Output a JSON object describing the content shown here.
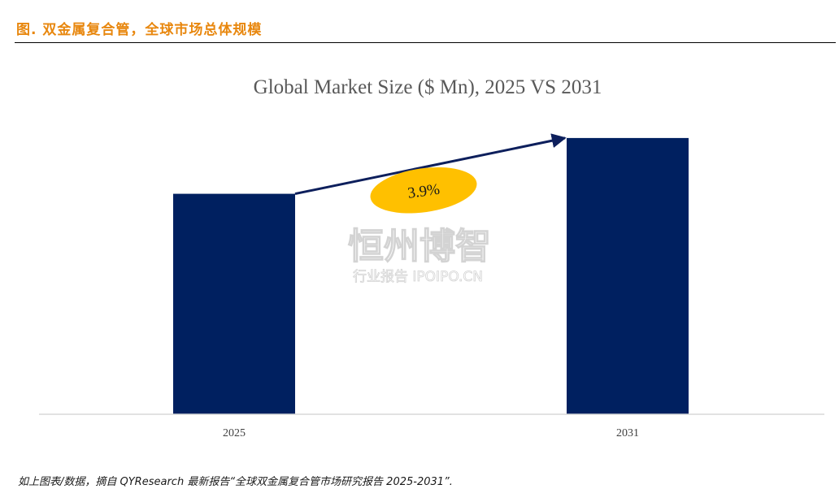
{
  "header": {
    "label": "图.  双金属复合管，全球市场总体规模",
    "color": "#E8870E"
  },
  "footnote": {
    "text": "如上图表/数据，摘自 QYResearch 最新报告“全球双金属复合管市场研究报告 2025-2031”."
  },
  "watermark": {
    "main": "恒州博智",
    "sub": "行业报告 IPOIPO.CN"
  },
  "colors": {
    "bar": "#002060",
    "arrow": "#0D1F5C",
    "ellipse": "#FFC000",
    "axis": "#D9D9D9"
  },
  "chart_data": {
    "type": "bar",
    "title": "Global Market Size ($ Mn), 2025 VS 2031",
    "categories": [
      "2025",
      "2031"
    ],
    "values": [
      100,
      125.3
    ],
    "ylim": [
      0,
      140
    ],
    "grid": false,
    "annotation": {
      "label": "3.9%",
      "kind": "growth-arrow"
    }
  }
}
